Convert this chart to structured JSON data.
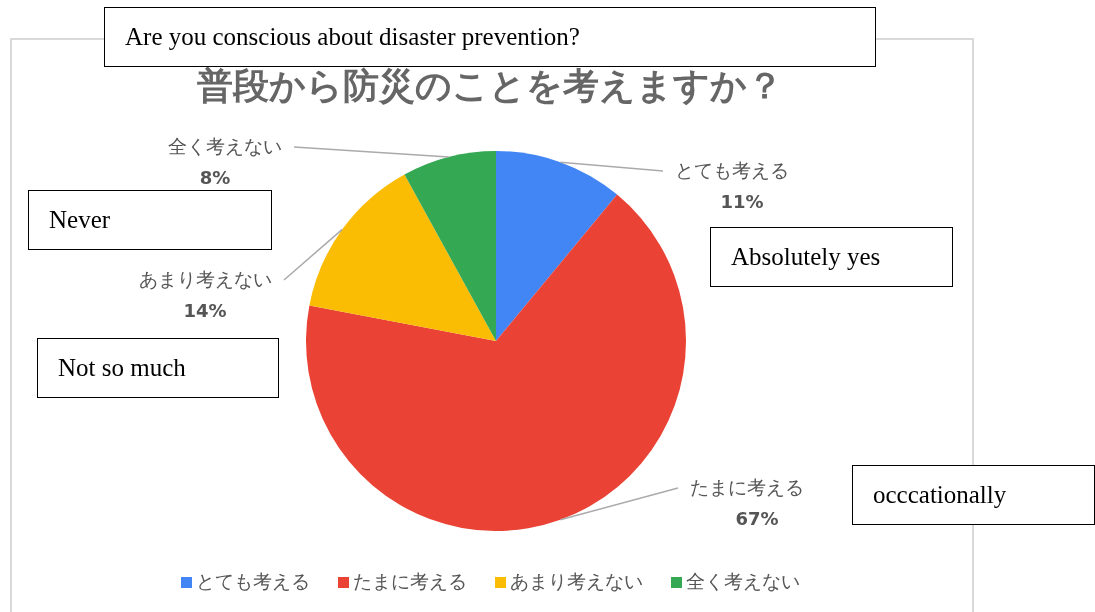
{
  "chart_data": {
    "type": "pie",
    "title": "普段から防災のことを考えますか？",
    "categories": [
      "とても考える",
      "たまに考える",
      "あまり考えない",
      "全く考えない"
    ],
    "values": [
      11,
      67,
      14,
      8
    ],
    "colors": [
      "#4285f4",
      "#ea4335",
      "#fbbc04",
      "#34a853"
    ],
    "value_labels": [
      "11%",
      "67%",
      "14%",
      "8%"
    ],
    "legend": "bottom",
    "annotations": [
      "Are you conscious about disaster prevention?",
      "Never",
      "Absolutely yes",
      "Not so much",
      "occcationally"
    ]
  }
}
